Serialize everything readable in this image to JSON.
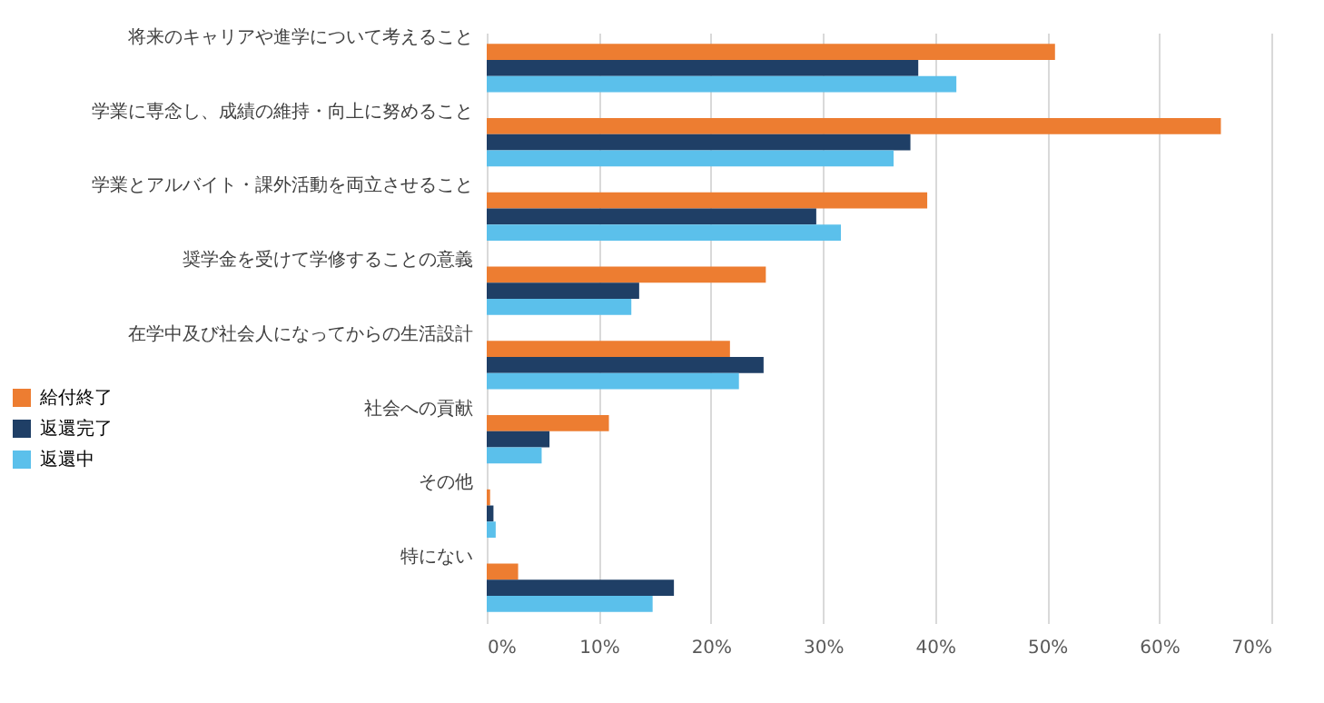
{
  "chart_data": {
    "type": "bar",
    "orientation": "horizontal",
    "categories": [
      "将来のキャリアや進学について考えること",
      "学業に専念し、成績の維持・向上に努めること",
      "学業とアルバイト・課外活動を両立させること",
      "奨学金を受けて学修することの意義",
      "在学中及び社会人になってからの生活設計",
      "社会への貢献",
      "その他",
      "特にない"
    ],
    "series": [
      {
        "name": "給付終了",
        "color": "#ed7d31",
        "values": [
          50.7,
          65.5,
          39.3,
          24.9,
          21.7,
          10.9,
          0.3,
          2.8
        ]
      },
      {
        "name": "返還完了",
        "color": "#1f3f66",
        "values": [
          38.5,
          37.8,
          29.4,
          13.6,
          24.7,
          5.6,
          0.6,
          16.7
        ]
      },
      {
        "name": "返還中",
        "color": "#5bc0eb",
        "values": [
          41.9,
          36.3,
          31.6,
          12.9,
          22.5,
          4.9,
          0.8,
          14.8
        ]
      }
    ],
    "xlim": [
      0,
      70
    ],
    "xticks": [
      {
        "value": 0,
        "label": "0%"
      },
      {
        "value": 10,
        "label": "10%"
      },
      {
        "value": 20,
        "label": "20%"
      },
      {
        "value": 30,
        "label": "30%"
      },
      {
        "value": 40,
        "label": "40%"
      },
      {
        "value": 50,
        "label": "50%"
      },
      {
        "value": 60,
        "label": "60%"
      },
      {
        "value": 70,
        "label": "70%"
      }
    ],
    "grid": "x",
    "legend": "bottom left"
  }
}
